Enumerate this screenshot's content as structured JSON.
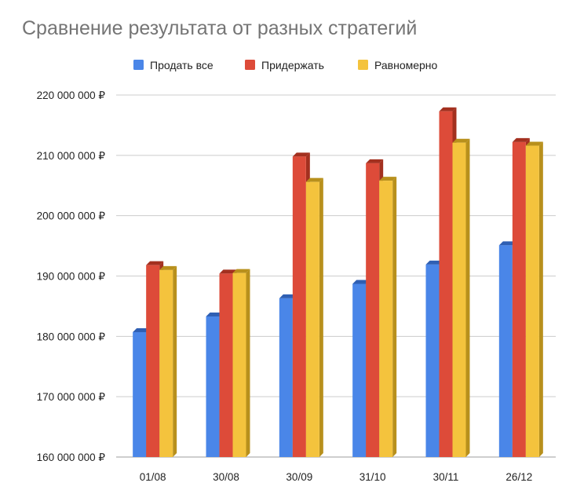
{
  "chart_data": {
    "type": "bar",
    "title": "Сравнение результата от разных стратегий",
    "xlabel": "",
    "ylabel": "",
    "currency_suffix": " ₽",
    "ylim": [
      160000000,
      220000000
    ],
    "y_ticks": [
      160000000,
      170000000,
      180000000,
      190000000,
      200000000,
      210000000,
      220000000
    ],
    "y_tick_labels": [
      "160 000 000 ₽",
      "170 000 000 ₽",
      "180 000 000 ₽",
      "190 000 000 ₽",
      "200 000 000 ₽",
      "210 000 000 ₽",
      "220 000 000 ₽"
    ],
    "categories": [
      "01/08",
      "30/08",
      "30/09",
      "31/10",
      "30/11",
      "26/12"
    ],
    "legend_position": "top",
    "grid": true,
    "series": [
      {
        "name": "Продать все",
        "color": "#4a86e8",
        "side_color": "#2f5fb3",
        "values": [
          180700000,
          183300000,
          186300000,
          188700000,
          191900000,
          195100000
        ]
      },
      {
        "name": "Придержать",
        "color": "#dd4b39",
        "side_color": "#a3301f",
        "values": [
          191800000,
          190400000,
          209800000,
          208700000,
          217300000,
          212200000
        ]
      },
      {
        "name": "Равномерно",
        "color": "#f4c33d",
        "side_color": "#b8901c",
        "values": [
          191000000,
          190500000,
          205600000,
          205800000,
          212100000,
          211600000
        ]
      }
    ]
  }
}
